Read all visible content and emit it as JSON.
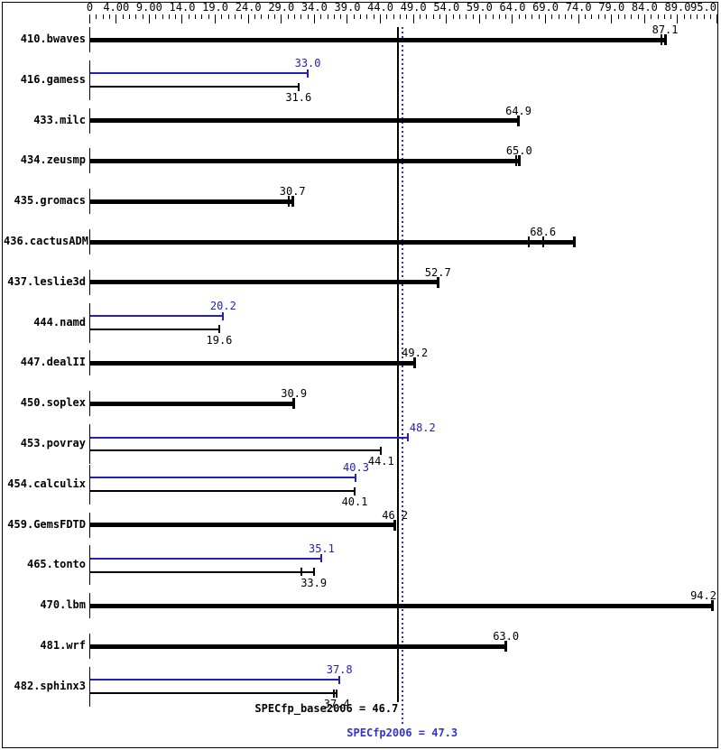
{
  "chart_data": {
    "type": "bar",
    "orientation": "horizontal",
    "title": "",
    "xlabel": "",
    "ylabel": "",
    "axis": {
      "min": 0,
      "max": 95,
      "minor_step": 1,
      "major_ticks": [
        {
          "value": 0,
          "label": "0"
        },
        {
          "value": 4,
          "label": "4.00"
        },
        {
          "value": 9,
          "label": "9.00"
        },
        {
          "value": 14,
          "label": "14.0"
        },
        {
          "value": 19,
          "label": "19.0"
        },
        {
          "value": 24,
          "label": "24.0"
        },
        {
          "value": 29,
          "label": "29.0"
        },
        {
          "value": 34,
          "label": "34.0"
        },
        {
          "value": 39,
          "label": "39.0"
        },
        {
          "value": 44,
          "label": "44.0"
        },
        {
          "value": 49,
          "label": "49.0"
        },
        {
          "value": 54,
          "label": "54.0"
        },
        {
          "value": 59,
          "label": "59.0"
        },
        {
          "value": 64,
          "label": "64.0"
        },
        {
          "value": 69,
          "label": "69.0"
        },
        {
          "value": 74,
          "label": "74.0"
        },
        {
          "value": 79,
          "label": "79.0"
        },
        {
          "value": 84,
          "label": "84.0"
        },
        {
          "value": 89,
          "label": "89.0"
        },
        {
          "value": 95,
          "label": "95.0"
        }
      ]
    },
    "colors": {
      "base": "#000000",
      "peak": "#2222bb",
      "mean_line_base": "#000000",
      "mean_line_peak": "#3333cc",
      "background": "#ffffff"
    },
    "benchmarks": [
      {
        "name": "410.bwaves",
        "bars": [
          {
            "series": "base",
            "value": 87.1,
            "label": "87.1",
            "thick": true,
            "label_pos": "above",
            "run_ticks": [
              86.6
            ]
          }
        ]
      },
      {
        "name": "416.gamess",
        "bars": [
          {
            "series": "peak",
            "value": 33.0,
            "label": "33.0",
            "thick": false,
            "label_pos": "above"
          },
          {
            "series": "base",
            "value": 31.6,
            "label": "31.6",
            "thick": false,
            "label_pos": "below"
          }
        ]
      },
      {
        "name": "433.milc",
        "bars": [
          {
            "series": "base",
            "value": 64.9,
            "label": "64.9",
            "thick": true,
            "label_pos": "above"
          }
        ]
      },
      {
        "name": "434.zeusmp",
        "bars": [
          {
            "series": "base",
            "value": 65.0,
            "label": "65.0",
            "thick": true,
            "label_pos": "above",
            "run_ticks": [
              64.5
            ]
          }
        ]
      },
      {
        "name": "435.gromacs",
        "bars": [
          {
            "series": "base",
            "value": 30.7,
            "label": "30.7",
            "thick": true,
            "label_pos": "above",
            "run_ticks": [
              30.1
            ]
          }
        ]
      },
      {
        "name": "436.cactusADM",
        "bars": [
          {
            "series": "base",
            "value": 68.6,
            "label": "68.6",
            "thick": true,
            "label_pos": "above",
            "bar_end": 73.4,
            "run_ticks": [
              66.4,
              68.7
            ]
          }
        ]
      },
      {
        "name": "437.leslie3d",
        "bars": [
          {
            "series": "base",
            "value": 52.7,
            "label": "52.7",
            "thick": true,
            "label_pos": "above"
          }
        ]
      },
      {
        "name": "444.namd",
        "bars": [
          {
            "series": "peak",
            "value": 20.2,
            "label": "20.2",
            "thick": false,
            "label_pos": "above"
          },
          {
            "series": "base",
            "value": 19.6,
            "label": "19.6",
            "thick": false,
            "label_pos": "below"
          }
        ]
      },
      {
        "name": "447.dealII",
        "bars": [
          {
            "series": "base",
            "value": 49.2,
            "label": "49.2",
            "thick": true,
            "label_pos": "above"
          }
        ]
      },
      {
        "name": "450.soplex",
        "bars": [
          {
            "series": "base",
            "value": 30.9,
            "label": "30.9",
            "thick": true,
            "label_pos": "above"
          }
        ]
      },
      {
        "name": "453.povray",
        "bars": [
          {
            "series": "peak",
            "value": 48.2,
            "label": "48.2",
            "thick": false,
            "label_pos": "above",
            "label_dx": 16
          },
          {
            "series": "base",
            "value": 44.1,
            "label": "44.1",
            "thick": false,
            "label_pos": "below"
          }
        ]
      },
      {
        "name": "454.calculix",
        "bars": [
          {
            "series": "peak",
            "value": 40.3,
            "label": "40.3",
            "thick": false,
            "label_pos": "above"
          },
          {
            "series": "base",
            "value": 40.1,
            "label": "40.1",
            "thick": false,
            "label_pos": "below"
          }
        ]
      },
      {
        "name": "459.GemsFDTD",
        "bars": [
          {
            "series": "base",
            "value": 46.2,
            "label": "46.2",
            "thick": true,
            "label_pos": "above"
          }
        ]
      },
      {
        "name": "465.tonto",
        "bars": [
          {
            "series": "peak",
            "value": 35.1,
            "label": "35.1",
            "thick": false,
            "label_pos": "above"
          },
          {
            "series": "base",
            "value": 33.9,
            "label": "33.9",
            "thick": false,
            "label_pos": "below",
            "run_ticks": [
              32.0
            ]
          }
        ]
      },
      {
        "name": "470.lbm",
        "bars": [
          {
            "series": "base",
            "value": 94.2,
            "label": "94.2",
            "thick": true,
            "label_pos": "above"
          }
        ]
      },
      {
        "name": "481.wrf",
        "bars": [
          {
            "series": "base",
            "value": 63.0,
            "label": "63.0",
            "thick": true,
            "label_pos": "above"
          }
        ]
      },
      {
        "name": "482.sphinx3",
        "bars": [
          {
            "series": "peak",
            "value": 37.8,
            "label": "37.8",
            "thick": false,
            "label_pos": "above"
          },
          {
            "series": "base",
            "value": 37.4,
            "label": "37.4",
            "thick": false,
            "label_pos": "below",
            "run_ticks": [
              37.0
            ]
          }
        ]
      }
    ],
    "mean_lines": [
      {
        "name": "SPECfp_base2006",
        "label": "SPECfp_base2006 = 46.7",
        "value": 46.7,
        "style": "solid",
        "color": "#000000",
        "label_align": "right"
      },
      {
        "name": "SPECfp2006",
        "label": "SPECfp2006 = 47.3",
        "value": 47.3,
        "style": "dotted",
        "color": "#3333cc",
        "label_align": "center"
      }
    ]
  }
}
